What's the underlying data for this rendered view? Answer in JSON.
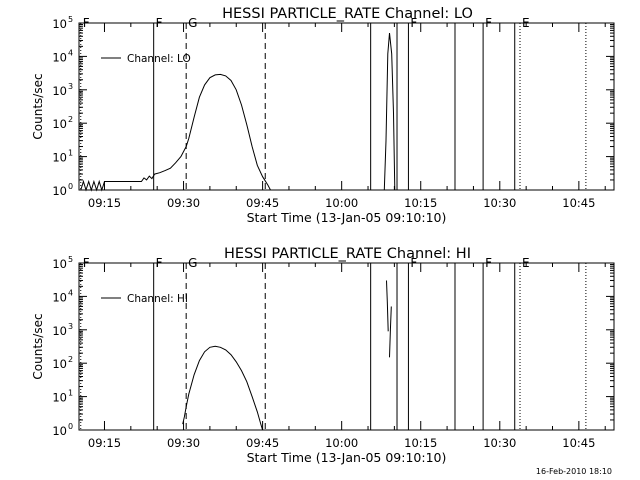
{
  "footer": "16-Feb-2010 18:10",
  "chart_data": [
    {
      "type": "line",
      "title": "HESSI PARTICLE_RATE Channel: LO",
      "xlabel": "Start Time (13-Jan-05 09:10:10)",
      "ylabel": "Counts/sec",
      "yscale": "log",
      "xlim": [
        "09:10:10",
        "10:51:40"
      ],
      "ylim": [
        1,
        100000
      ],
      "xticks": [
        "09:15",
        "09:30",
        "09:45",
        "10:00",
        "10:15",
        "10:30",
        "10:45"
      ],
      "yticks": [
        {
          "base": "10",
          "exp": "0"
        },
        {
          "base": "10",
          "exp": "1"
        },
        {
          "base": "10",
          "exp": "2"
        },
        {
          "base": "10",
          "exp": "3"
        },
        {
          "base": "10",
          "exp": "4"
        },
        {
          "base": "10",
          "exp": "5"
        }
      ],
      "legend": {
        "label": "Channel: LO",
        "position": "top-left"
      },
      "markers": [
        {
          "label": "F",
          "time": "09:10:30",
          "style": "dotted"
        },
        {
          "label": "F",
          "time": "09:24:20",
          "style": "solid"
        },
        {
          "label": "G",
          "time": "09:30:30",
          "style": "dashed"
        },
        {
          "label": "",
          "time": "09:45:30",
          "style": "dashed"
        },
        {
          "label": "",
          "time": "10:05:30",
          "style": "solid"
        },
        {
          "label": "",
          "time": "10:10:30",
          "style": "solid"
        },
        {
          "label": "F",
          "time": "10:12:40",
          "style": "solid"
        },
        {
          "label": "",
          "time": "10:21:30",
          "style": "solid"
        },
        {
          "label": "F",
          "time": "10:26:50",
          "style": "solid"
        },
        {
          "label": "",
          "time": "10:32:50",
          "style": "solid"
        },
        {
          "label": "E",
          "time": "10:33:50",
          "style": "dotted"
        },
        {
          "label": "",
          "time": "10:46:20",
          "style": "dotted"
        }
      ],
      "series": [
        {
          "segments": [
            [
              [
                "09:10:30",
                1.0
              ],
              [
                "09:11:00",
                1.8
              ],
              [
                "09:11:30",
                1.0
              ],
              [
                "09:12:00",
                1.8
              ],
              [
                "09:12:30",
                1.0
              ],
              [
                "09:13:00",
                1.8
              ],
              [
                "09:13:30",
                1.0
              ],
              [
                "09:14:00",
                1.8
              ],
              [
                "09:14:30",
                1.0
              ],
              [
                "09:15:00",
                1.8
              ],
              [
                "09:22:00",
                1.8
              ],
              [
                "09:22:30",
                2.3
              ],
              [
                "09:23:00",
                2.0
              ],
              [
                "09:23:30",
                2.6
              ],
              [
                "09:24:00",
                2.2
              ],
              [
                "09:24:30",
                3.0
              ],
              [
                "09:25:30",
                3.3
              ],
              [
                "09:26:30",
                3.8
              ],
              [
                "09:27:30",
                4.5
              ],
              [
                "09:28:30",
                6.5
              ],
              [
                "09:29:30",
                10
              ],
              [
                "09:30:30",
                20
              ],
              [
                "09:31:00",
                35
              ],
              [
                "09:32:00",
                150
              ],
              [
                "09:33:00",
                600
              ],
              [
                "09:34:00",
                1400
              ],
              [
                "09:35:00",
                2300
              ],
              [
                "09:36:00",
                2800
              ],
              [
                "09:37:00",
                2900
              ],
              [
                "09:38:00",
                2600
              ],
              [
                "09:39:00",
                1900
              ],
              [
                "09:40:00",
                1000
              ],
              [
                "09:41:00",
                350
              ],
              [
                "09:42:00",
                90
              ],
              [
                "09:43:00",
                20
              ],
              [
                "09:44:00",
                5.5
              ],
              [
                "09:45:00",
                2.5
              ],
              [
                "09:46:00",
                1.4
              ],
              [
                "09:46:30",
                1.0
              ]
            ],
            [
              [
                "10:08:05",
                1.0
              ],
              [
                "10:08:25",
                30
              ],
              [
                "10:08:45",
                12000
              ],
              [
                "10:09:05",
                50000
              ],
              [
                "10:09:30",
                12000
              ],
              [
                "10:09:50",
                200
              ],
              [
                "10:10:05",
                1.0
              ]
            ]
          ]
        }
      ]
    },
    {
      "type": "line",
      "title": "HESSI PARTICLE_RATE Channel: HI",
      "xlabel": "Start Time (13-Jan-05 09:10:10)",
      "ylabel": "Counts/sec",
      "yscale": "log",
      "xlim": [
        "09:10:10",
        "10:51:40"
      ],
      "ylim": [
        1,
        100000
      ],
      "xticks": [
        "09:15",
        "09:30",
        "09:45",
        "10:00",
        "10:15",
        "10:30",
        "10:45"
      ],
      "yticks": [
        {
          "base": "10",
          "exp": "0"
        },
        {
          "base": "10",
          "exp": "1"
        },
        {
          "base": "10",
          "exp": "2"
        },
        {
          "base": "10",
          "exp": "3"
        },
        {
          "base": "10",
          "exp": "4"
        },
        {
          "base": "10",
          "exp": "5"
        }
      ],
      "legend": {
        "label": "Channel: HI",
        "position": "top-left"
      },
      "markers": [
        {
          "label": "F",
          "time": "09:10:30",
          "style": "dotted"
        },
        {
          "label": "F",
          "time": "09:24:20",
          "style": "solid"
        },
        {
          "label": "G",
          "time": "09:30:30",
          "style": "dashed"
        },
        {
          "label": "",
          "time": "09:45:30",
          "style": "dashed"
        },
        {
          "label": "",
          "time": "10:05:30",
          "style": "solid"
        },
        {
          "label": "",
          "time": "10:10:30",
          "style": "solid"
        },
        {
          "label": "F",
          "time": "10:12:40",
          "style": "solid"
        },
        {
          "label": "",
          "time": "10:21:30",
          "style": "solid"
        },
        {
          "label": "F",
          "time": "10:26:50",
          "style": "solid"
        },
        {
          "label": "",
          "time": "10:32:50",
          "style": "solid"
        },
        {
          "label": "E",
          "time": "10:33:50",
          "style": "dotted"
        },
        {
          "label": "",
          "time": "10:46:20",
          "style": "dotted"
        }
      ],
      "series": [
        {
          "segments": [
            [
              [
                "09:29:50",
                1.5
              ],
              [
                "09:30:10",
                2.5
              ],
              [
                "09:30:30",
                5
              ],
              [
                "09:31:00",
                12
              ],
              [
                "09:32:00",
                45
              ],
              [
                "09:33:00",
                120
              ],
              [
                "09:34:00",
                220
              ],
              [
                "09:35:00",
                300
              ],
              [
                "09:36:00",
                320
              ],
              [
                "09:37:00",
                300
              ],
              [
                "09:38:00",
                250
              ],
              [
                "09:39:00",
                180
              ],
              [
                "09:40:00",
                110
              ],
              [
                "09:41:00",
                60
              ],
              [
                "09:42:00",
                28
              ],
              [
                "09:43:00",
                10
              ],
              [
                "09:44:00",
                3.5
              ],
              [
                "09:44:40",
                1.5
              ],
              [
                "09:45:00",
                1.0
              ]
            ],
            [
              [
                "10:08:30",
                30000
              ],
              [
                "10:08:40",
                7000
              ],
              [
                "10:08:50",
                900
              ]
            ],
            [
              [
                "10:09:25",
                5000
              ],
              [
                "10:09:15",
                1000
              ],
              [
                "10:09:05",
                150
              ]
            ]
          ]
        }
      ]
    }
  ]
}
